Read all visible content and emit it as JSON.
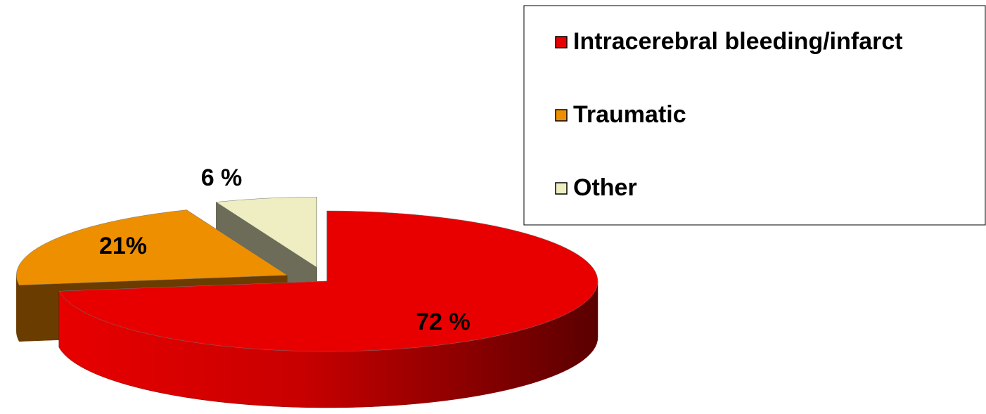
{
  "chart_data": {
    "type": "pie",
    "categories": [
      "Intracerebral bleeding/infarct",
      "Traumatic",
      "Other"
    ],
    "values": [
      72,
      21,
      6
    ],
    "value_labels": [
      "72 %",
      "21%",
      "6 %"
    ],
    "colors": [
      "#e80000",
      "#ee8f00",
      "#eeeec2"
    ],
    "legend": "top-right"
  }
}
